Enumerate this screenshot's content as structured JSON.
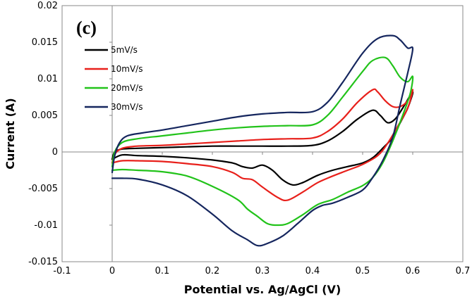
{
  "chart_data": {
    "type": "line",
    "panel_label": "(c)",
    "xlabel": "Potential vs. Ag/AgCl (V)",
    "ylabel": "Current (A)",
    "xlim": [
      -0.1,
      0.7
    ],
    "ylim": [
      -0.015,
      0.02
    ],
    "xticks": [
      -0.1,
      0,
      0.1,
      0.2,
      0.3,
      0.4,
      0.5,
      0.6,
      0.7
    ],
    "xtick_labels": [
      "-0.1",
      "0",
      "0.1",
      "0.2",
      "0.3",
      "0.4",
      "0.5",
      "0.6",
      "0.7"
    ],
    "yticks": [
      -0.015,
      -0.01,
      -0.005,
      0,
      0.005,
      0.01,
      0.015,
      0.02
    ],
    "ytick_labels": [
      "-0.015",
      "-0.01",
      "-0.005",
      "0",
      "0.005",
      "0.01",
      "0.015",
      "0.02"
    ],
    "grid": false,
    "legend_position": "top-left",
    "series": [
      {
        "name": "5mV/s",
        "color": "#000000",
        "x": [
          0.0,
          0.005,
          0.02,
          0.05,
          0.1,
          0.15,
          0.2,
          0.25,
          0.3,
          0.35,
          0.4,
          0.43,
          0.46,
          0.49,
          0.52,
          0.535,
          0.55,
          0.565,
          0.58,
          0.6,
          0.59,
          0.575,
          0.56,
          0.54,
          0.52,
          0.5,
          0.47,
          0.44,
          0.41,
          0.38,
          0.36,
          0.34,
          0.32,
          0.3,
          0.28,
          0.26,
          0.24,
          0.2,
          0.15,
          0.1,
          0.05,
          0.02,
          0.0
        ],
        "y": [
          -0.001,
          0.0,
          0.0004,
          0.0005,
          0.0006,
          0.0007,
          0.0008,
          0.0008,
          0.0008,
          0.0008,
          0.0009,
          0.0015,
          0.0028,
          0.0045,
          0.0057,
          0.005,
          0.004,
          0.0045,
          0.006,
          0.0082,
          0.006,
          0.004,
          0.002,
          0.0005,
          -0.0008,
          -0.0015,
          -0.002,
          -0.0025,
          -0.0032,
          -0.0042,
          -0.0045,
          -0.0038,
          -0.0025,
          -0.0018,
          -0.0022,
          -0.002,
          -0.0015,
          -0.0011,
          -0.0008,
          -0.0006,
          -0.0005,
          -0.0004,
          -0.001
        ]
      },
      {
        "name": "10mV/s",
        "color": "#e8201b",
        "x": [
          0.0,
          0.005,
          0.02,
          0.05,
          0.1,
          0.15,
          0.2,
          0.25,
          0.3,
          0.35,
          0.4,
          0.43,
          0.46,
          0.49,
          0.52,
          0.53,
          0.545,
          0.56,
          0.575,
          0.59,
          0.6,
          0.59,
          0.57,
          0.55,
          0.53,
          0.5,
          0.47,
          0.44,
          0.41,
          0.38,
          0.35,
          0.33,
          0.3,
          0.28,
          0.26,
          0.24,
          0.2,
          0.15,
          0.1,
          0.05,
          0.02,
          0.0
        ],
        "y": [
          -0.0015,
          -0.0003,
          0.0005,
          0.0008,
          0.0009,
          0.0011,
          0.0013,
          0.0015,
          0.0017,
          0.0018,
          0.0019,
          0.0028,
          0.0045,
          0.0068,
          0.0085,
          0.0082,
          0.007,
          0.0062,
          0.0062,
          0.007,
          0.0085,
          0.006,
          0.0035,
          0.0012,
          -0.0005,
          -0.0017,
          -0.0025,
          -0.0033,
          -0.0042,
          -0.0055,
          -0.0066,
          -0.0062,
          -0.0048,
          -0.0038,
          -0.0036,
          -0.0028,
          -0.002,
          -0.0016,
          -0.0013,
          -0.0012,
          -0.0012,
          -0.0015
        ]
      },
      {
        "name": "20mV/s",
        "color": "#22c31a",
        "x": [
          0.0,
          0.005,
          0.02,
          0.05,
          0.1,
          0.15,
          0.2,
          0.25,
          0.3,
          0.35,
          0.4,
          0.43,
          0.46,
          0.5,
          0.52,
          0.545,
          0.56,
          0.575,
          0.59,
          0.6,
          0.595,
          0.58,
          0.56,
          0.54,
          0.52,
          0.5,
          0.47,
          0.44,
          0.41,
          0.38,
          0.35,
          0.33,
          0.31,
          0.29,
          0.27,
          0.25,
          0.2,
          0.15,
          0.1,
          0.05,
          0.02,
          0.0
        ],
        "y": [
          -0.002,
          0.0,
          0.0013,
          0.0018,
          0.0022,
          0.0026,
          0.003,
          0.0033,
          0.0035,
          0.0036,
          0.0037,
          0.005,
          0.0075,
          0.011,
          0.0125,
          0.0129,
          0.0118,
          0.0102,
          0.0096,
          0.0103,
          0.008,
          0.005,
          0.0015,
          -0.0015,
          -0.0035,
          -0.0046,
          -0.0055,
          -0.0065,
          -0.0072,
          -0.0086,
          -0.0098,
          -0.01,
          -0.0098,
          -0.0088,
          -0.0078,
          -0.0065,
          -0.0047,
          -0.0033,
          -0.0027,
          -0.0025,
          -0.0024,
          -0.0025
        ]
      },
      {
        "name": "30mV/s",
        "color": "#15265e",
        "x": [
          0.0,
          0.005,
          0.015,
          0.03,
          0.06,
          0.1,
          0.15,
          0.2,
          0.25,
          0.3,
          0.35,
          0.4,
          0.43,
          0.46,
          0.5,
          0.53,
          0.56,
          0.575,
          0.59,
          0.6,
          0.59,
          0.575,
          0.56,
          0.54,
          0.52,
          0.5,
          0.47,
          0.44,
          0.42,
          0.4,
          0.37,
          0.34,
          0.31,
          0.29,
          0.27,
          0.24,
          0.2,
          0.15,
          0.1,
          0.05,
          0.02,
          0.0
        ],
        "y": [
          -0.0028,
          -0.0005,
          0.0013,
          0.0022,
          0.0026,
          0.003,
          0.0036,
          0.0042,
          0.0048,
          0.0052,
          0.0054,
          0.0055,
          0.0068,
          0.0095,
          0.0135,
          0.0155,
          0.0159,
          0.0153,
          0.0142,
          0.0141,
          0.0108,
          0.0065,
          0.002,
          -0.0012,
          -0.0035,
          -0.0052,
          -0.0062,
          -0.007,
          -0.0073,
          -0.008,
          -0.0098,
          -0.0115,
          -0.0125,
          -0.0128,
          -0.012,
          -0.0108,
          -0.0085,
          -0.006,
          -0.0045,
          -0.0037,
          -0.0036,
          -0.0036
        ]
      }
    ]
  }
}
